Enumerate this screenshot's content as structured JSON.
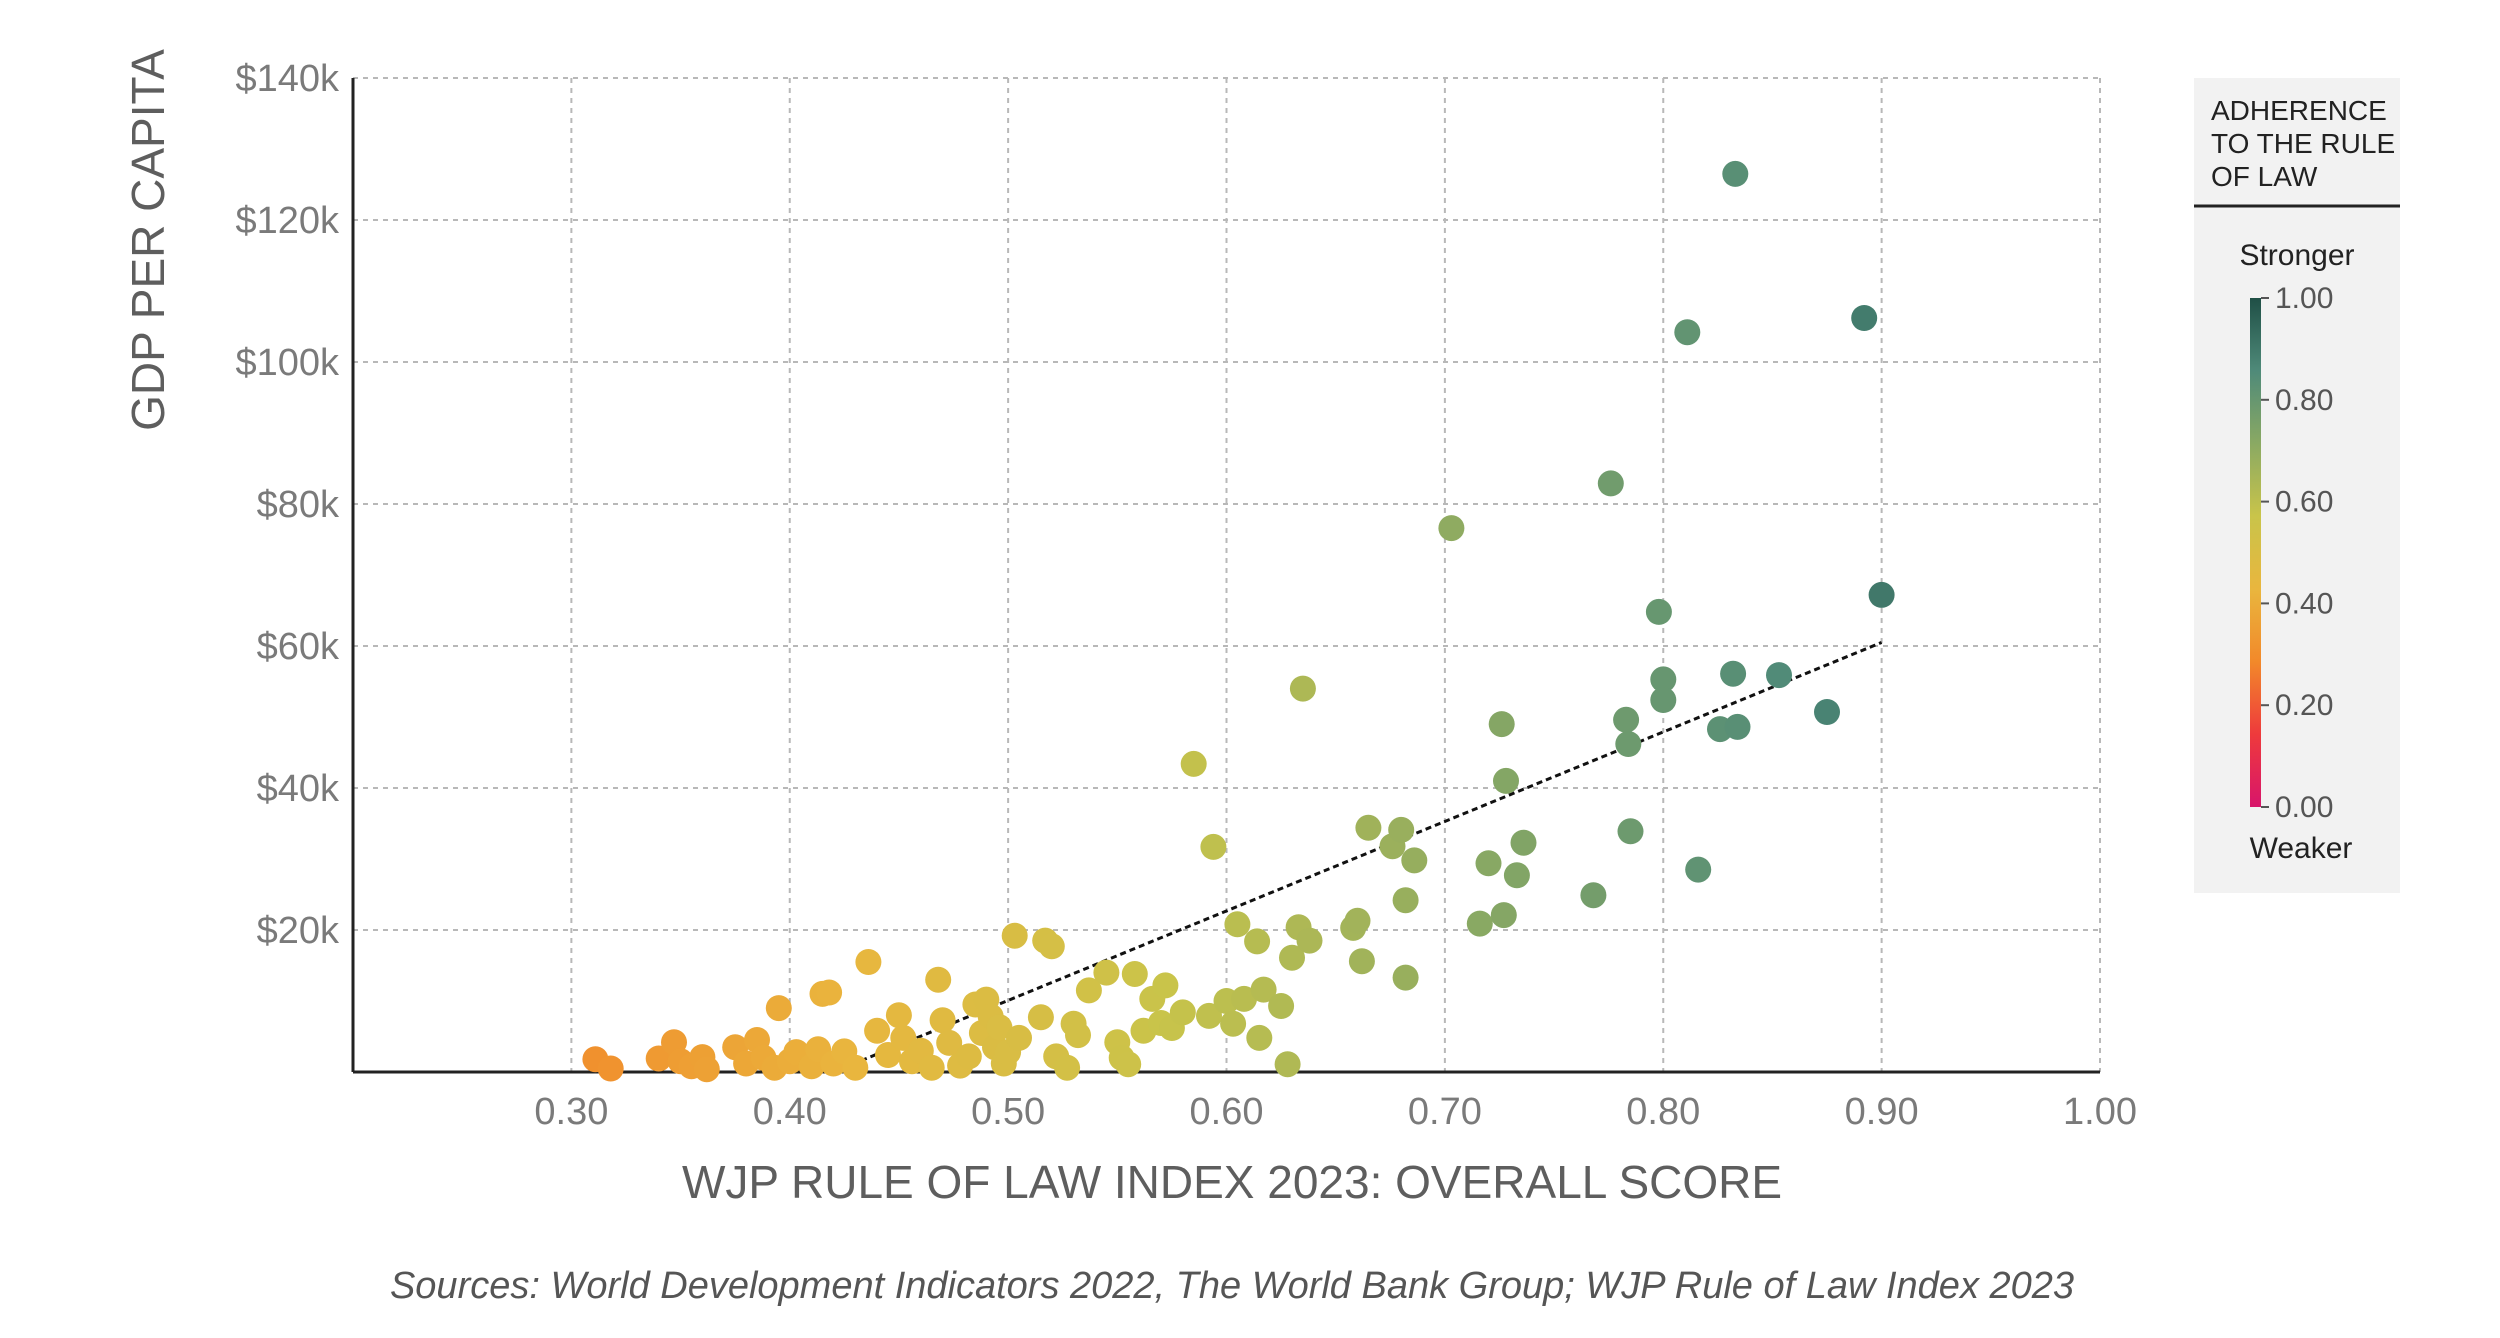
{
  "chart_data": {
    "type": "scatter",
    "xlabel": "WJP RULE OF LAW INDEX 2023: OVERALL SCORE",
    "ylabel": "GDP PER CAPITA",
    "xlim": [
      0.2,
      1.0
    ],
    "ylim": [
      0,
      140000
    ],
    "x_ticks": [
      {
        "value": 0.3,
        "label": "0.30"
      },
      {
        "value": 0.4,
        "label": "0.40"
      },
      {
        "value": 0.5,
        "label": "0.50"
      },
      {
        "value": 0.6,
        "label": "0.60"
      },
      {
        "value": 0.7,
        "label": "0.70"
      },
      {
        "value": 0.8,
        "label": "0.80"
      },
      {
        "value": 0.9,
        "label": "0.90"
      },
      {
        "value": 1.0,
        "label": "1.00"
      }
    ],
    "y_ticks": [
      {
        "value": 20000,
        "label": "$20k"
      },
      {
        "value": 40000,
        "label": "$40k"
      },
      {
        "value": 60000,
        "label": "$60k"
      },
      {
        "value": 80000,
        "label": "$80k"
      },
      {
        "value": 100000,
        "label": "$100k"
      },
      {
        "value": 120000,
        "label": "$120k"
      },
      {
        "value": 140000,
        "label": "$140k"
      }
    ],
    "grid": true,
    "trendline": {
      "x": [
        0.42,
        0.9
      ],
      "y": [
        0,
        60500
      ]
    },
    "points": [
      {
        "x": 0.311,
        "y": 1800
      },
      {
        "x": 0.318,
        "y": 500
      },
      {
        "x": 0.34,
        "y": 1900
      },
      {
        "x": 0.347,
        "y": 4200
      },
      {
        "x": 0.35,
        "y": 1500
      },
      {
        "x": 0.355,
        "y": 800
      },
      {
        "x": 0.36,
        "y": 2100
      },
      {
        "x": 0.362,
        "y": 400
      },
      {
        "x": 0.375,
        "y": 3500
      },
      {
        "x": 0.38,
        "y": 1200
      },
      {
        "x": 0.385,
        "y": 4500
      },
      {
        "x": 0.388,
        "y": 2000
      },
      {
        "x": 0.393,
        "y": 600
      },
      {
        "x": 0.395,
        "y": 9000
      },
      {
        "x": 0.4,
        "y": 1500
      },
      {
        "x": 0.403,
        "y": 2800
      },
      {
        "x": 0.41,
        "y": 800
      },
      {
        "x": 0.413,
        "y": 3200
      },
      {
        "x": 0.415,
        "y": 11000
      },
      {
        "x": 0.418,
        "y": 11200
      },
      {
        "x": 0.42,
        "y": 1200
      },
      {
        "x": 0.425,
        "y": 2900
      },
      {
        "x": 0.43,
        "y": 600
      },
      {
        "x": 0.436,
        "y": 15500
      },
      {
        "x": 0.44,
        "y": 5800
      },
      {
        "x": 0.445,
        "y": 2400
      },
      {
        "x": 0.45,
        "y": 8000
      },
      {
        "x": 0.452,
        "y": 4800
      },
      {
        "x": 0.456,
        "y": 1500
      },
      {
        "x": 0.46,
        "y": 3000
      },
      {
        "x": 0.465,
        "y": 600
      },
      {
        "x": 0.468,
        "y": 13000
      },
      {
        "x": 0.47,
        "y": 7300
      },
      {
        "x": 0.473,
        "y": 4100
      },
      {
        "x": 0.478,
        "y": 900
      },
      {
        "x": 0.482,
        "y": 2200
      },
      {
        "x": 0.485,
        "y": 9500
      },
      {
        "x": 0.488,
        "y": 5500
      },
      {
        "x": 0.49,
        "y": 10200
      },
      {
        "x": 0.492,
        "y": 7800
      },
      {
        "x": 0.494,
        "y": 3500
      },
      {
        "x": 0.496,
        "y": 6300
      },
      {
        "x": 0.498,
        "y": 1200
      },
      {
        "x": 0.5,
        "y": 2800
      },
      {
        "x": 0.503,
        "y": 19200
      },
      {
        "x": 0.505,
        "y": 4800
      },
      {
        "x": 0.515,
        "y": 7700
      },
      {
        "x": 0.517,
        "y": 18500
      },
      {
        "x": 0.52,
        "y": 17700
      },
      {
        "x": 0.522,
        "y": 2200
      },
      {
        "x": 0.527,
        "y": 600
      },
      {
        "x": 0.53,
        "y": 6800
      },
      {
        "x": 0.532,
        "y": 5200
      },
      {
        "x": 0.537,
        "y": 11500
      },
      {
        "x": 0.545,
        "y": 14000
      },
      {
        "x": 0.55,
        "y": 4200
      },
      {
        "x": 0.552,
        "y": 2000
      },
      {
        "x": 0.555,
        "y": 1100
      },
      {
        "x": 0.558,
        "y": 13800
      },
      {
        "x": 0.562,
        "y": 5800
      },
      {
        "x": 0.566,
        "y": 10300
      },
      {
        "x": 0.57,
        "y": 6900
      },
      {
        "x": 0.572,
        "y": 12200
      },
      {
        "x": 0.575,
        "y": 6200
      },
      {
        "x": 0.58,
        "y": 8400
      },
      {
        "x": 0.585,
        "y": 43400
      },
      {
        "x": 0.592,
        "y": 7900
      },
      {
        "x": 0.594,
        "y": 31700
      },
      {
        "x": 0.6,
        "y": 10000
      },
      {
        "x": 0.603,
        "y": 6800
      },
      {
        "x": 0.605,
        "y": 20800
      },
      {
        "x": 0.608,
        "y": 10300
      },
      {
        "x": 0.614,
        "y": 18400
      },
      {
        "x": 0.615,
        "y": 4800
      },
      {
        "x": 0.617,
        "y": 11600
      },
      {
        "x": 0.625,
        "y": 9300
      },
      {
        "x": 0.628,
        "y": 1100
      },
      {
        "x": 0.63,
        "y": 16100
      },
      {
        "x": 0.633,
        "y": 20400
      },
      {
        "x": 0.635,
        "y": 54000
      },
      {
        "x": 0.638,
        "y": 18500
      },
      {
        "x": 0.658,
        "y": 20300
      },
      {
        "x": 0.66,
        "y": 21300
      },
      {
        "x": 0.662,
        "y": 15600
      },
      {
        "x": 0.665,
        "y": 34400
      },
      {
        "x": 0.676,
        "y": 31800
      },
      {
        "x": 0.68,
        "y": 34100
      },
      {
        "x": 0.682,
        "y": 24200
      },
      {
        "x": 0.682,
        "y": 13300
      },
      {
        "x": 0.686,
        "y": 29800
      },
      {
        "x": 0.703,
        "y": 76600
      },
      {
        "x": 0.716,
        "y": 20900
      },
      {
        "x": 0.72,
        "y": 29400
      },
      {
        "x": 0.726,
        "y": 49000
      },
      {
        "x": 0.727,
        "y": 22100
      },
      {
        "x": 0.728,
        "y": 41000
      },
      {
        "x": 0.733,
        "y": 27700
      },
      {
        "x": 0.736,
        "y": 32300
      },
      {
        "x": 0.768,
        "y": 24900
      },
      {
        "x": 0.776,
        "y": 82900
      },
      {
        "x": 0.783,
        "y": 49600
      },
      {
        "x": 0.784,
        "y": 46200
      },
      {
        "x": 0.785,
        "y": 33900
      },
      {
        "x": 0.798,
        "y": 64800
      },
      {
        "x": 0.8,
        "y": 55300
      },
      {
        "x": 0.8,
        "y": 52400
      },
      {
        "x": 0.811,
        "y": 104200
      },
      {
        "x": 0.816,
        "y": 28500
      },
      {
        "x": 0.826,
        "y": 48300
      },
      {
        "x": 0.832,
        "y": 56100
      },
      {
        "x": 0.833,
        "y": 126500
      },
      {
        "x": 0.834,
        "y": 48600
      },
      {
        "x": 0.853,
        "y": 55900
      },
      {
        "x": 0.875,
        "y": 50700
      },
      {
        "x": 0.892,
        "y": 106200
      },
      {
        "x": 0.9,
        "y": 67200
      }
    ]
  },
  "legend": {
    "title_lines": [
      "ADHERENCE",
      "TO THE RULE",
      "OF LAW"
    ],
    "stronger": "Stronger",
    "weaker": "Weaker",
    "ticks": [
      {
        "value": 1.0,
        "label": "1.00"
      },
      {
        "value": 0.8,
        "label": "0.80"
      },
      {
        "value": 0.6,
        "label": "0.60"
      },
      {
        "value": 0.4,
        "label": "0.40"
      },
      {
        "value": 0.2,
        "label": "0.20"
      },
      {
        "value": 0.0,
        "label": "0.00"
      }
    ]
  },
  "colors": {
    "scale": [
      "#d8156b",
      "#ee3a3c",
      "#f2892a",
      "#e9b63e",
      "#c9c44a",
      "#8aa963",
      "#4f8a79",
      "#1f4f46"
    ],
    "grid": "#b8b8b8",
    "axis": "#222222",
    "legend_bg": "#f2f2f2"
  },
  "source_text": "Sources: World Development Indicators 2022, The World Bank Group; WJP Rule of Law Index 2023"
}
